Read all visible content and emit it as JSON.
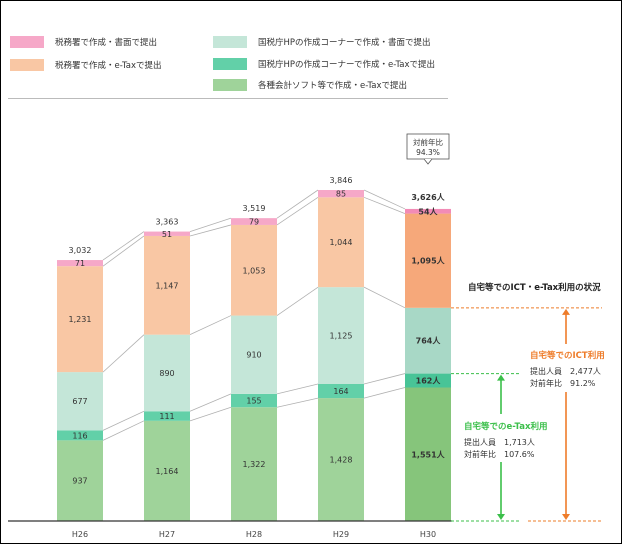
{
  "legend": [
    {
      "label": "税務署で作成・書面で提出",
      "color": "#f6a8c8"
    },
    {
      "label": "税務署で作成・e-Taxで提出",
      "color": "#f9c7a4"
    },
    {
      "label": "国税庁HPの作成コーナーで作成・書面で提出",
      "color": "#c4e6d8"
    },
    {
      "label": "国税庁HPの作成コーナーで作成・e-Taxで提出",
      "color": "#62d0a8"
    },
    {
      "label": "各種会計ソフト等で作成・e-Taxで提出",
      "color": "#9fd39a"
    }
  ],
  "chart_data": {
    "type": "bar",
    "stacked": true,
    "categories": [
      "H26",
      "H27",
      "H28",
      "H29",
      "H30"
    ],
    "series": [
      {
        "name": "各種会計ソフト等で作成・e-Taxで提出",
        "values": [
          937,
          1164,
          1322,
          1428,
          1551
        ],
        "labels": [
          "937",
          "1,164",
          "1,322",
          "1,428",
          "1,551人"
        ],
        "color": "#9fd39a",
        "highlight_color": "#86c57b"
      },
      {
        "name": "国税庁HPの作成コーナーで作成・e-Taxで提出",
        "values": [
          116,
          111,
          155,
          164,
          162
        ],
        "labels": [
          "116",
          "111",
          "155",
          "164",
          "162人"
        ],
        "color": "#62d0a8",
        "highlight_color": "#48c497"
      },
      {
        "name": "国税庁HPの作成コーナーで作成・書面で提出",
        "values": [
          677,
          890,
          910,
          1125,
          764
        ],
        "labels": [
          "677",
          "890",
          "910",
          "1,125",
          "764人"
        ],
        "color": "#c4e6d8",
        "highlight_color": "#a8d8c6"
      },
      {
        "name": "税務署で作成・e-Taxで提出",
        "values": [
          1231,
          1147,
          1053,
          1044,
          1095
        ],
        "labels": [
          "1,231",
          "1,147",
          "1,053",
          "1,044",
          "1,095人"
        ],
        "color": "#f9c7a4",
        "highlight_color": "#f6a87a"
      },
      {
        "name": "税務署で作成・書面で提出",
        "values": [
          71,
          51,
          79,
          85,
          54
        ],
        "labels": [
          "71",
          "51",
          "79",
          "85",
          "54人"
        ],
        "color": "#f6a8c8",
        "highlight_color": "#f28bb6"
      }
    ],
    "totals": [
      3032,
      3363,
      3519,
      3846,
      3626
    ],
    "total_labels": [
      "3,032",
      "3,363",
      "3,519",
      "3,846",
      "3,626人"
    ],
    "highlight_index": 4,
    "callout": {
      "line1": "対前年比",
      "line2": "94.3%"
    },
    "ylim": [
      0,
      4000
    ]
  },
  "annotations": {
    "title": "自宅等でのICT・e-Tax利用の状況",
    "ict": {
      "heading": "自宅等でのICT利用",
      "row1": "提出人員　2,477人",
      "row2": "対前年比　91.2%",
      "color": "#ee7c2a"
    },
    "etax": {
      "heading": "自宅等でのe-Tax利用",
      "row1": "提出人員　1,713人",
      "row2": "対前年比　107.6%",
      "color": "#3bbf4a"
    }
  }
}
